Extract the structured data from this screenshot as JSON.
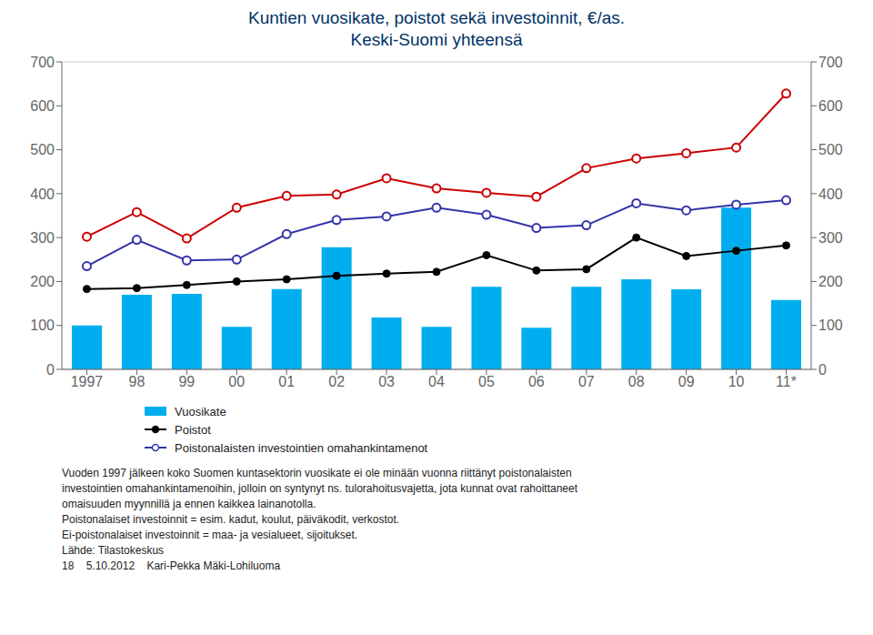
{
  "chart_data": {
    "type": "bar",
    "title": "Kuntien vuosikate, poistot sekä investoinnit, €/as.",
    "subtitle": "Keski-Suomi yhteensä",
    "categories": [
      "1997",
      "98",
      "99",
      "00",
      "01",
      "02",
      "03",
      "04",
      "05",
      "06",
      "07",
      "08",
      "09",
      "10",
      "11*"
    ],
    "series": [
      {
        "name": "Vuosikate",
        "type": "bar",
        "color": "#00AEEF",
        "values": [
          100,
          170,
          172,
          97,
          183,
          278,
          118,
          97,
          188,
          95,
          188,
          205,
          182,
          368,
          158
        ]
      },
      {
        "name": "Poistot",
        "type": "line",
        "color": "#000000",
        "marker": "circle",
        "values": [
          183,
          185,
          192,
          200,
          205,
          213,
          218,
          222,
          260,
          225,
          228,
          300,
          258,
          270,
          282
        ]
      },
      {
        "name": "Poistonalaisten investointien omahankintamenot",
        "type": "line",
        "color": "#3333AA",
        "marker": "open_circle",
        "values": [
          235,
          295,
          248,
          250,
          308,
          340,
          348,
          368,
          352,
          322,
          328,
          378,
          362,
          375,
          385
        ]
      },
      {
        "type": "line",
        "color": "#CC0000",
        "marker": "open_circle",
        "values": [
          302,
          358,
          298,
          368,
          395,
          398,
          435,
          412,
          402,
          393,
          458,
          480,
          492,
          505,
          628
        ]
      }
    ],
    "ylim": [
      0,
      700
    ],
    "yticks": [
      0,
      100,
      200,
      300,
      400,
      500,
      600,
      700
    ],
    "y2lim": [
      0,
      700
    ],
    "y2ticks": [
      0,
      100,
      200,
      300,
      400,
      500,
      600,
      700
    ],
    "grid": true,
    "legend": "bottom",
    "annotations": [
      "Vuoden 1997 jälkeen koko Suomen kuntasektorin vuosikate ei ole minään vuonna riittänyt poistonalaisten",
      "investointien omahankintamenoihin, jolloin on syntynyt ns. tulorahoitusvajetta, jota kunnat ovat rahoittaneet",
      "omaisuuden myynnillä ja ennen kaikkea lainanotolla.",
      "Poistonalaiset investoinnit = esim. kadut, koulut, päiväkodit, verkostot.",
      "Ei-poistonalaiset investoinnit = maa- ja vesialueet, sijoitukset.",
      "Lähde: Tilastokeskus",
      "18    5.10.2012    Kari-Pekka Mäki-Lohiluoma"
    ]
  }
}
